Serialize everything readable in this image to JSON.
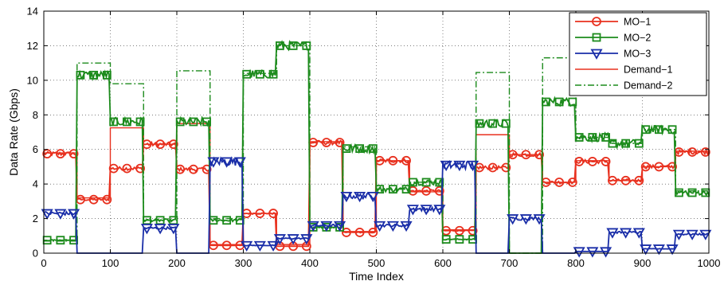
{
  "chart_data": {
    "type": "line",
    "xlabel": "Time Index",
    "ylabel": "Data Rate (Gbps)",
    "xlim": [
      0,
      1000
    ],
    "ylim": [
      0,
      14
    ],
    "xticks": [
      0,
      100,
      200,
      300,
      400,
      500,
      600,
      700,
      800,
      900,
      1000
    ],
    "yticks": [
      0,
      2,
      4,
      6,
      8,
      10,
      12,
      14
    ],
    "grid": true,
    "legend_position": "top-right",
    "series": [
      {
        "name": "MO−1",
        "color": "#e8301e",
        "marker": "circle",
        "step_levels": [
          {
            "x0": 0,
            "x1": 50,
            "y": 5.75
          },
          {
            "x0": 50,
            "x1": 100,
            "y": 3.1
          },
          {
            "x0": 100,
            "x1": 150,
            "y": 4.9
          },
          {
            "x0": 150,
            "x1": 200,
            "y": 6.3
          },
          {
            "x0": 200,
            "x1": 250,
            "y": 4.85
          },
          {
            "x0": 250,
            "x1": 300,
            "y": 0.45
          },
          {
            "x0": 300,
            "x1": 350,
            "y": 2.3
          },
          {
            "x0": 350,
            "x1": 400,
            "y": 0.4
          },
          {
            "x0": 400,
            "x1": 450,
            "y": 6.4
          },
          {
            "x0": 450,
            "x1": 500,
            "y": 1.2
          },
          {
            "x0": 500,
            "x1": 550,
            "y": 5.35
          },
          {
            "x0": 550,
            "x1": 600,
            "y": 3.6
          },
          {
            "x0": 600,
            "x1": 650,
            "y": 1.3
          },
          {
            "x0": 650,
            "x1": 700,
            "y": 4.95
          },
          {
            "x0": 700,
            "x1": 750,
            "y": 5.7
          },
          {
            "x0": 750,
            "x1": 800,
            "y": 4.1
          },
          {
            "x0": 800,
            "x1": 850,
            "y": 5.3
          },
          {
            "x0": 850,
            "x1": 900,
            "y": 4.2
          },
          {
            "x0": 900,
            "x1": 950,
            "y": 5.0
          },
          {
            "x0": 950,
            "x1": 1000,
            "y": 5.85
          }
        ],
        "noise": 0.06,
        "marker_x": [
          5,
          25,
          45,
          55,
          75,
          95,
          105,
          125,
          145,
          155,
          175,
          195,
          205,
          225,
          245,
          255,
          275,
          295,
          305,
          325,
          345,
          355,
          375,
          395,
          405,
          425,
          445,
          455,
          475,
          495,
          505,
          525,
          545,
          555,
          575,
          595,
          605,
          625,
          645,
          655,
          675,
          695,
          705,
          725,
          745,
          755,
          775,
          795,
          805,
          825,
          845,
          855,
          875,
          895,
          905,
          925,
          945,
          955,
          975,
          995
        ]
      },
      {
        "name": "MO−2",
        "color": "#1c8b1c",
        "marker": "square",
        "step_levels": [
          {
            "x0": 0,
            "x1": 50,
            "y": 0.75
          },
          {
            "x0": 50,
            "x1": 100,
            "y": 10.3
          },
          {
            "x0": 100,
            "x1": 150,
            "y": 7.6
          },
          {
            "x0": 150,
            "x1": 200,
            "y": 1.9
          },
          {
            "x0": 200,
            "x1": 250,
            "y": 7.6
          },
          {
            "x0": 250,
            "x1": 300,
            "y": 1.9
          },
          {
            "x0": 300,
            "x1": 350,
            "y": 10.35
          },
          {
            "x0": 350,
            "x1": 400,
            "y": 12.0
          },
          {
            "x0": 400,
            "x1": 450,
            "y": 1.5
          },
          {
            "x0": 450,
            "x1": 500,
            "y": 6.05
          },
          {
            "x0": 500,
            "x1": 550,
            "y": 3.7
          },
          {
            "x0": 550,
            "x1": 600,
            "y": 4.1
          },
          {
            "x0": 600,
            "x1": 650,
            "y": 0.8
          },
          {
            "x0": 650,
            "x1": 700,
            "y": 7.5
          },
          {
            "x0": 700,
            "x1": 750,
            "y": 0.0
          },
          {
            "x0": 750,
            "x1": 800,
            "y": 8.75
          },
          {
            "x0": 800,
            "x1": 850,
            "y": 6.7
          },
          {
            "x0": 850,
            "x1": 900,
            "y": 6.35
          },
          {
            "x0": 900,
            "x1": 950,
            "y": 7.15
          },
          {
            "x0": 950,
            "x1": 1000,
            "y": 3.5
          }
        ],
        "noise": 0.12,
        "marker_x": [
          5,
          25,
          45,
          55,
          75,
          95,
          105,
          125,
          145,
          155,
          175,
          195,
          205,
          225,
          245,
          255,
          275,
          295,
          305,
          325,
          345,
          355,
          375,
          395,
          405,
          425,
          445,
          455,
          475,
          495,
          505,
          525,
          545,
          555,
          575,
          595,
          605,
          625,
          645,
          655,
          675,
          695,
          755,
          775,
          795,
          805,
          825,
          845,
          855,
          875,
          895,
          905,
          925,
          945,
          955,
          975,
          995
        ]
      },
      {
        "name": "MO−3",
        "color": "#1a2ea8",
        "marker": "triangle-down",
        "step_levels": [
          {
            "x0": 0,
            "x1": 50,
            "y": 2.3
          },
          {
            "x0": 50,
            "x1": 100,
            "y": 0.0
          },
          {
            "x0": 100,
            "x1": 150,
            "y": 0.0
          },
          {
            "x0": 150,
            "x1": 200,
            "y": 1.45
          },
          {
            "x0": 200,
            "x1": 250,
            "y": 0.0
          },
          {
            "x0": 250,
            "x1": 300,
            "y": 5.3
          },
          {
            "x0": 300,
            "x1": 350,
            "y": 0.45
          },
          {
            "x0": 350,
            "x1": 400,
            "y": 0.85
          },
          {
            "x0": 400,
            "x1": 450,
            "y": 1.6
          },
          {
            "x0": 450,
            "x1": 500,
            "y": 3.3
          },
          {
            "x0": 500,
            "x1": 550,
            "y": 1.6
          },
          {
            "x0": 550,
            "x1": 600,
            "y": 2.55
          },
          {
            "x0": 600,
            "x1": 650,
            "y": 5.1
          },
          {
            "x0": 650,
            "x1": 700,
            "y": 0.0
          },
          {
            "x0": 700,
            "x1": 750,
            "y": 2.0
          },
          {
            "x0": 750,
            "x1": 800,
            "y": 0.0
          },
          {
            "x0": 800,
            "x1": 850,
            "y": 0.1
          },
          {
            "x0": 850,
            "x1": 900,
            "y": 1.2
          },
          {
            "x0": 900,
            "x1": 950,
            "y": 0.25
          },
          {
            "x0": 950,
            "x1": 1000,
            "y": 1.1
          }
        ],
        "noise": 0.14,
        "marker_x": [
          5,
          25,
          45,
          155,
          175,
          195,
          255,
          275,
          295,
          305,
          325,
          345,
          355,
          375,
          395,
          405,
          425,
          445,
          455,
          475,
          495,
          505,
          525,
          545,
          555,
          575,
          595,
          605,
          625,
          645,
          705,
          725,
          745,
          805,
          825,
          845,
          855,
          875,
          895,
          905,
          925,
          945,
          955,
          975,
          995
        ]
      },
      {
        "name": "Demand−1",
        "color": "#e8301e",
        "style": "solid",
        "steps": [
          [
            0,
            5.8
          ],
          [
            50,
            3.2
          ],
          [
            100,
            7.25
          ],
          [
            150,
            6.3
          ],
          [
            200,
            7.5
          ],
          [
            250,
            0.5
          ],
          [
            300,
            2.3
          ],
          [
            350,
            0.5
          ],
          [
            400,
            6.45
          ],
          [
            450,
            1.25
          ],
          [
            500,
            5.35
          ],
          [
            550,
            3.55
          ],
          [
            600,
            1.35
          ],
          [
            650,
            6.85
          ],
          [
            700,
            5.7
          ],
          [
            750,
            4.1
          ],
          [
            800,
            5.35
          ],
          [
            850,
            4.2
          ],
          [
            900,
            5.0
          ],
          [
            950,
            5.9
          ],
          [
            1000,
            5.9
          ]
        ]
      },
      {
        "name": "Demand−2",
        "color": "#1c8b1c",
        "style": "dashdot",
        "steps": [
          [
            0,
            0.7
          ],
          [
            50,
            11.0
          ],
          [
            100,
            9.8
          ],
          [
            150,
            1.9
          ],
          [
            200,
            10.55
          ],
          [
            250,
            2.0
          ],
          [
            300,
            10.4
          ],
          [
            350,
            12.0
          ],
          [
            400,
            1.5
          ],
          [
            450,
            6.15
          ],
          [
            500,
            3.7
          ],
          [
            550,
            4.1
          ],
          [
            600,
            0.8
          ],
          [
            650,
            10.45
          ],
          [
            700,
            0.0
          ],
          [
            750,
            11.3
          ],
          [
            800,
            6.7
          ],
          [
            850,
            6.35
          ],
          [
            900,
            7.15
          ],
          [
            950,
            3.6
          ],
          [
            1000,
            3.6
          ]
        ]
      }
    ]
  }
}
